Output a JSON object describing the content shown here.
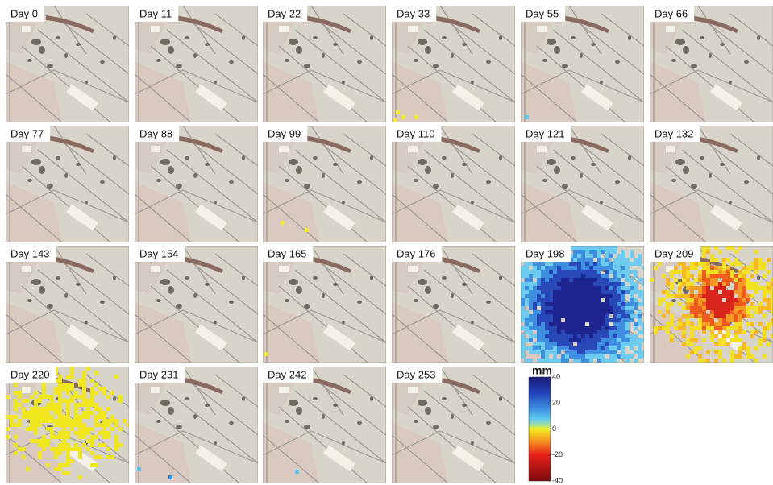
{
  "panels": [
    {
      "label": "Day 0"
    },
    {
      "label": "Day 11"
    },
    {
      "label": "Day 22"
    },
    {
      "label": "Day 33"
    },
    {
      "label": "Day 55"
    },
    {
      "label": "Day 66"
    },
    {
      "label": "Day 77"
    },
    {
      "label": "Day 88"
    },
    {
      "label": "Day 99"
    },
    {
      "label": "Day 110"
    },
    {
      "label": "Day 121"
    },
    {
      "label": "Day 132"
    },
    {
      "label": "Day 143"
    },
    {
      "label": "Day 154"
    },
    {
      "label": "Day 165"
    },
    {
      "label": "Day 176"
    },
    {
      "label": "Day 198"
    },
    {
      "label": "Day 209"
    },
    {
      "label": "Day 220"
    },
    {
      "label": "Day 231"
    },
    {
      "label": "Day 242"
    },
    {
      "label": "Day 253"
    }
  ],
  "colorbar": {
    "title": "mm",
    "range": [
      -40,
      40
    ],
    "ticks": [
      40,
      20,
      0,
      -20,
      -40
    ]
  }
}
